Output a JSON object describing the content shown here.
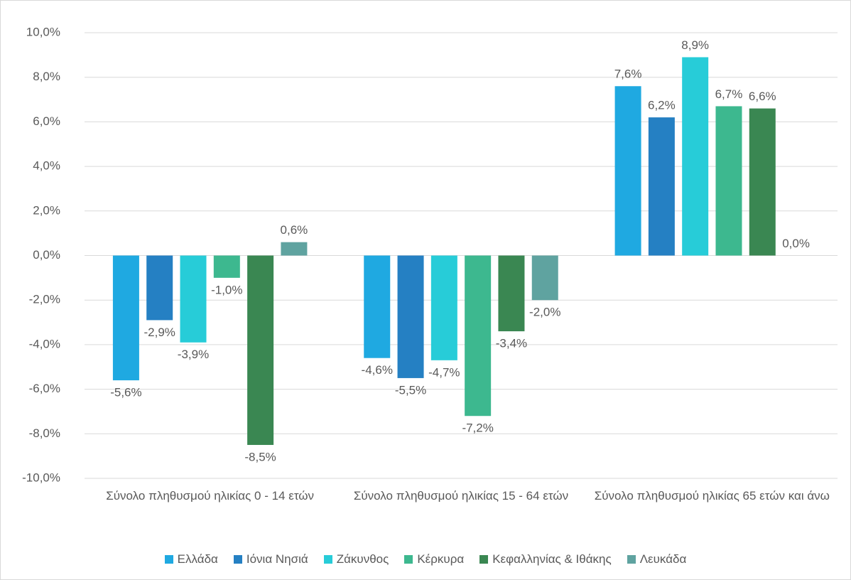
{
  "chart_data": {
    "type": "bar",
    "categories": [
      "Σύνολο πληθυσμού ηλικίας 0 - 14 ετών",
      "Σύνολο πληθυσμού ηλικίας 15 - 64 ετών",
      "Σύνολο πληθυσμού ηλικίας 65 ετών και άνω"
    ],
    "series": [
      {
        "name": "Ελλάδα",
        "color": "#1fa9e1",
        "values": [
          -5.6,
          -4.6,
          7.6
        ],
        "value_labels": [
          "-5,6%",
          "-4,6%",
          "7,6%"
        ]
      },
      {
        "name": "Ιόνια Νησιά",
        "color": "#2580c3",
        "values": [
          -2.9,
          -5.5,
          6.2
        ],
        "value_labels": [
          "-2,9%",
          "-5,5%",
          "6,2%"
        ]
      },
      {
        "name": "Ζάκυνθος",
        "color": "#27ccd8",
        "values": [
          -3.9,
          -4.7,
          8.9
        ],
        "value_labels": [
          "-3,9%",
          "-4,7%",
          "8,9%"
        ]
      },
      {
        "name": "Κέρκυρα",
        "color": "#3db88f",
        "values": [
          -1.0,
          -7.2,
          6.7
        ],
        "value_labels": [
          "-1,0%",
          "-7,2%",
          "6,7%"
        ]
      },
      {
        "name": "Κεφαλληνίας & Ιθάκης",
        "color": "#3a8752",
        "values": [
          -8.5,
          -3.4,
          6.6
        ],
        "value_labels": [
          "-8,5%",
          "-3,4%",
          "6,6%"
        ]
      },
      {
        "name": "Λευκάδα",
        "color": "#5fa3a0",
        "values": [
          0.6,
          -2.0,
          0.0
        ],
        "value_labels": [
          "0,6%",
          "-2,0%",
          "0,0%"
        ]
      }
    ],
    "ylim": [
      -10,
      10
    ],
    "yticks": [
      {
        "value": -10,
        "label": "-10,0%"
      },
      {
        "value": -8,
        "label": "-8,0%"
      },
      {
        "value": -6,
        "label": "-6,0%"
      },
      {
        "value": -4,
        "label": "-4,0%"
      },
      {
        "value": -2,
        "label": "-2,0%"
      },
      {
        "value": 0,
        "label": "0,0%"
      },
      {
        "value": 2,
        "label": "2,0%"
      },
      {
        "value": 4,
        "label": "4,0%"
      },
      {
        "value": 6,
        "label": "6,0%"
      },
      {
        "value": 8,
        "label": "8,0%"
      },
      {
        "value": 10,
        "label": "10,0%"
      }
    ],
    "grid": true,
    "legend": "bottom"
  }
}
